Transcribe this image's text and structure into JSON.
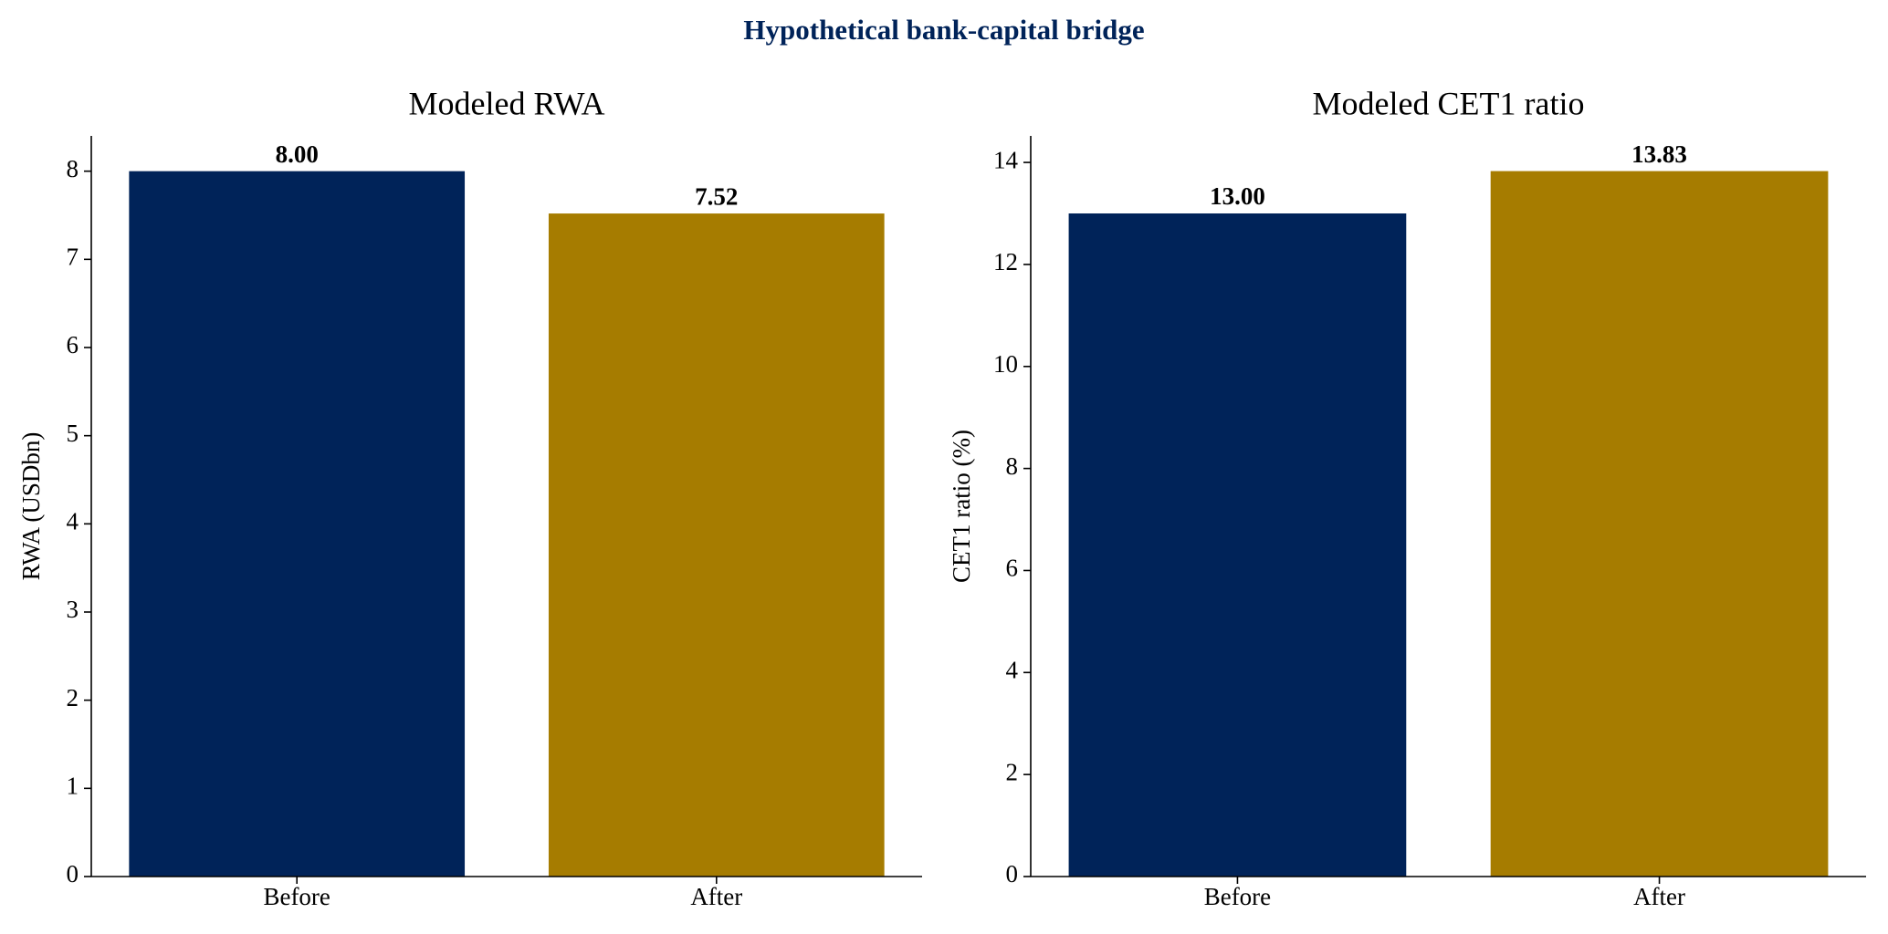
{
  "title": "Hypothetical bank-capital bridge",
  "chart_data": [
    {
      "type": "bar",
      "title": "Modeled RWA",
      "ylabel": "RWA (USDbn)",
      "categories": [
        "Before",
        "After"
      ],
      "values": [
        8.0,
        7.52
      ],
      "value_labels": [
        "8.00",
        "7.52"
      ],
      "colors": [
        "#002359",
        "#a67c00"
      ],
      "ylim": [
        0,
        8.4
      ],
      "yticks": [
        0,
        1,
        2,
        3,
        4,
        5,
        6,
        7,
        8
      ]
    },
    {
      "type": "bar",
      "title": "Modeled CET1 ratio",
      "ylabel": "CET1 ratio (%)",
      "categories": [
        "Before",
        "After"
      ],
      "values": [
        13.0,
        13.83
      ],
      "value_labels": [
        "13.00",
        "13.83"
      ],
      "colors": [
        "#002359",
        "#a67c00"
      ],
      "ylim": [
        0,
        14.52
      ],
      "yticks": [
        0,
        2,
        4,
        6,
        8,
        10,
        12,
        14
      ]
    }
  ]
}
